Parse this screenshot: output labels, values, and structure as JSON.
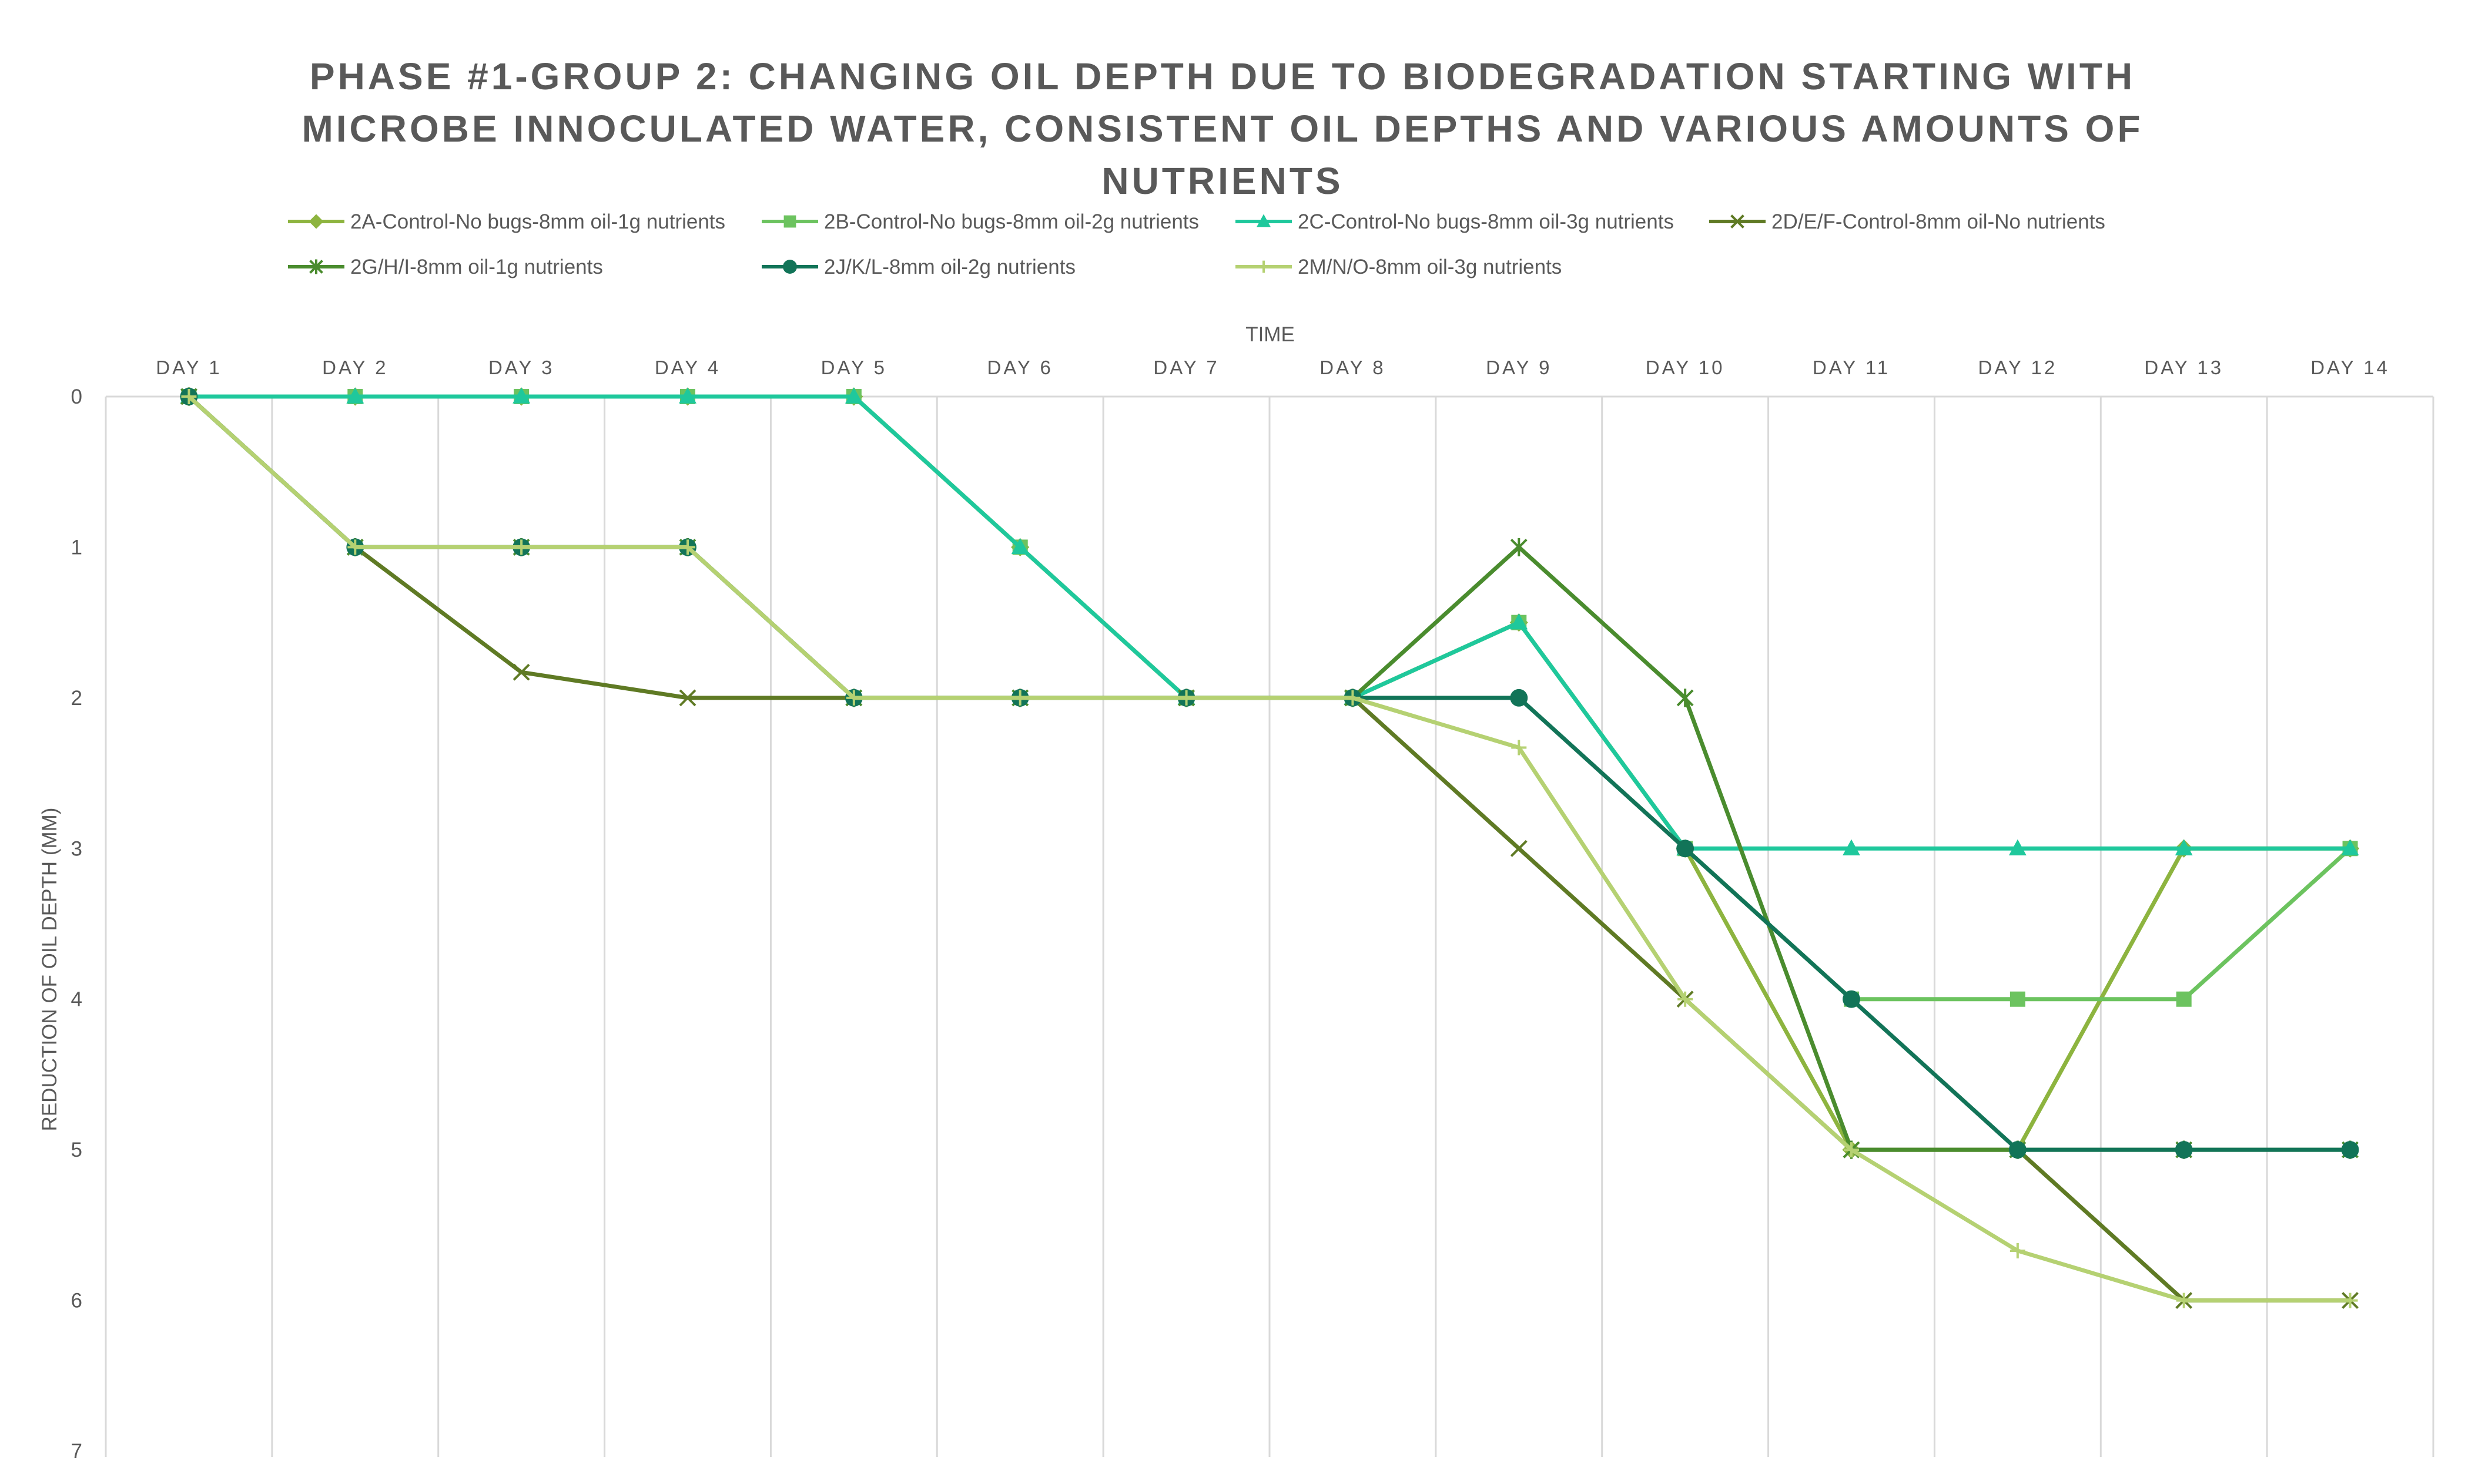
{
  "chart_data": {
    "type": "line",
    "title_lines": [
      "PHASE #1-GROUP 2: CHANGING OIL DEPTH DUE TO BIODEGRADATION STARTING WITH",
      "MICROBE INNOCULATED WATER, CONSISTENT OIL DEPTHS AND VARIOUS AMOUNTS OF",
      "NUTRIENTS"
    ],
    "xlabel": "TIME",
    "ylabel": "REDUCTION OF OIL DEPTH (MM)",
    "categories": [
      "DAY 1",
      "DAY 2",
      "DAY 3",
      "DAY 4",
      "DAY 5",
      "DAY 6",
      "DAY 7",
      "DAY 8",
      "DAY 9",
      "DAY 10",
      "DAY 11",
      "DAY 12",
      "DAY 13",
      "DAY 14"
    ],
    "y_ticks": [
      "0",
      "1",
      "2",
      "3",
      "4",
      "5",
      "6",
      "7"
    ],
    "ylim": [
      0,
      7
    ],
    "y_axis_reversed": true,
    "x_axis_position": "top",
    "grid": "vertical",
    "legend_position": "top",
    "series": [
      {
        "name": "2A-Control-No bugs-8mm oil-1g nutrients",
        "color": "#8DB43F",
        "marker": "diamond",
        "values": [
          0,
          0,
          0,
          0,
          0,
          1,
          2,
          2,
          1.5,
          3,
          5,
          5,
          3,
          3
        ]
      },
      {
        "name": "2B-Control-No bugs-8mm oil-2g nutrients",
        "color": "#6CC35F",
        "marker": "square",
        "values": [
          0,
          0,
          0,
          0,
          0,
          1,
          2,
          2,
          1.5,
          3,
          4,
          4,
          4,
          3
        ]
      },
      {
        "name": "2C-Control-No bugs-8mm oil-3g nutrients",
        "color": "#1FC89C",
        "marker": "triangle",
        "values": [
          0,
          0,
          0,
          0,
          0,
          1,
          2,
          2,
          1.5,
          3,
          3,
          3,
          3,
          3
        ]
      },
      {
        "name": "2D/E/F-Control-8mm oil-No nutrients",
        "color": "#5F7A24",
        "marker": "x",
        "values": [
          0,
          1,
          1.83,
          2,
          2,
          2,
          2,
          2,
          3,
          4,
          5,
          5,
          6,
          6
        ]
      },
      {
        "name": "2G/H/I-8mm oil-1g nutrients",
        "color": "#4A8C2E",
        "marker": "star",
        "values": [
          0,
          1,
          1,
          1,
          2,
          2,
          2,
          2,
          1,
          2,
          5,
          5,
          5,
          5
        ]
      },
      {
        "name": "2J/K/L-8mm oil-2g nutrients",
        "color": "#127458",
        "marker": "circle",
        "values": [
          0,
          1,
          1,
          1,
          2,
          2,
          2,
          2,
          2,
          3,
          4,
          5,
          5,
          5
        ]
      },
      {
        "name": "2M/N/O-8mm oil-3g nutrients",
        "color": "#B5D172",
        "marker": "plus",
        "values": [
          0,
          1,
          1,
          1,
          2,
          2,
          2,
          2,
          2.33,
          4,
          5,
          5.67,
          6,
          6
        ]
      }
    ]
  }
}
